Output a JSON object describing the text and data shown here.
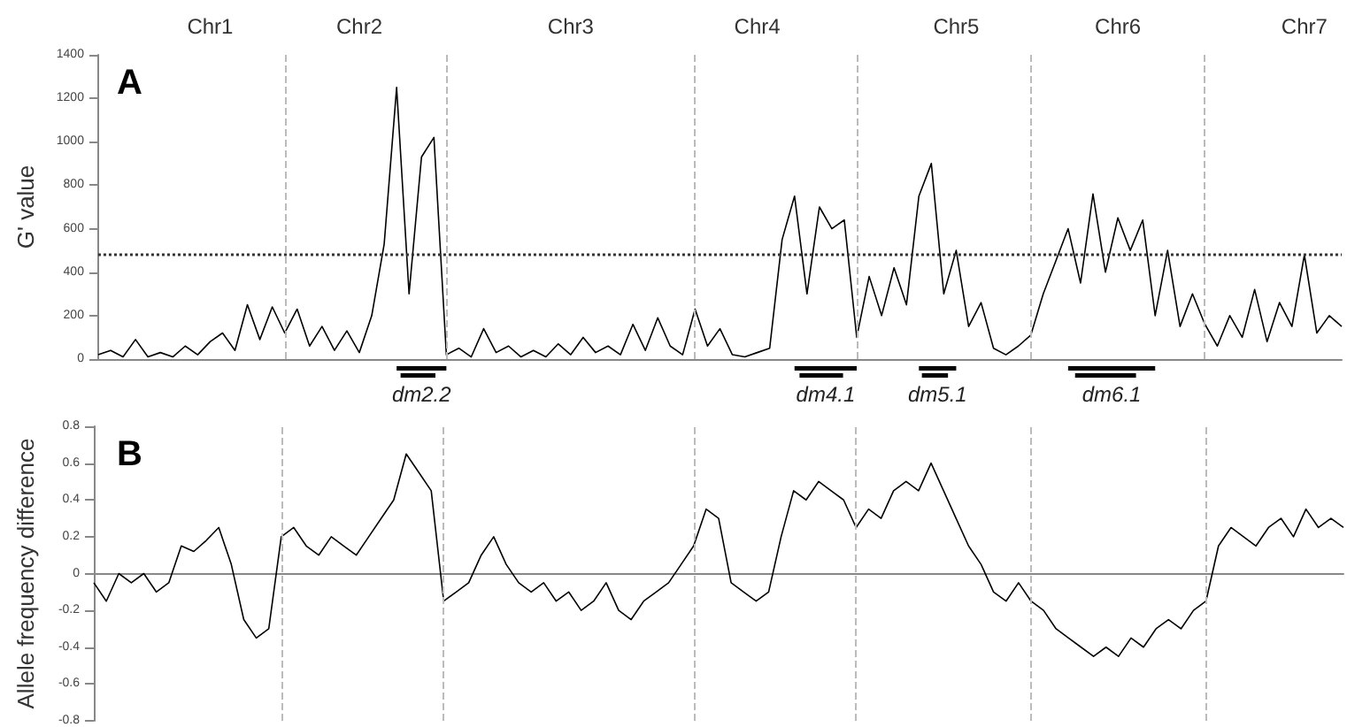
{
  "chart_data": [
    {
      "type": "line",
      "ylabel": "G' value",
      "annotations": [
        "A",
        "dm2.2",
        "dm4.1",
        "dm5.1",
        "dm6.1"
      ],
      "categories": [
        null,
        null,
        null,
        null,
        null,
        null,
        null,
        null,
        null,
        "Chr1",
        null,
        null,
        null,
        null,
        null,
        null,
        null,
        null,
        null,
        null,
        null,
        "Chr2",
        null,
        null,
        null,
        null,
        null,
        null,
        null,
        null,
        null,
        null,
        null,
        null,
        null,
        null,
        null,
        null,
        "Chr3",
        null,
        null,
        null,
        null,
        null,
        null,
        null,
        null,
        null,
        null,
        null,
        null,
        null,
        null,
        "Chr4",
        null,
        null,
        null,
        null,
        null,
        null,
        null,
        null,
        null,
        null,
        null,
        null,
        null,
        null,
        null,
        "Chr5",
        null,
        null,
        null,
        null,
        null,
        null,
        null,
        null,
        null,
        null,
        null,
        null,
        "Chr6",
        null,
        null,
        null,
        null,
        null,
        null,
        null,
        null,
        null,
        null,
        null,
        null,
        null,
        null,
        "Chr7",
        null,
        null,
        null
      ],
      "ylim": [
        0,
        1400
      ],
      "yticks": [
        0,
        200,
        400,
        600,
        800,
        1000,
        1200,
        1400
      ],
      "marker": "none",
      "line_style": "solid",
      "series": [
        {
          "color": "#000000",
          "values": [
            20,
            40,
            10,
            90,
            10,
            30,
            10,
            60,
            20,
            80,
            120,
            40,
            250,
            90,
            240,
            120,
            230,
            60,
            150,
            40,
            130,
            30,
            200,
            530,
            1250,
            300,
            930,
            1020,
            20,
            50,
            10,
            140,
            30,
            60,
            10,
            40,
            10,
            70,
            20,
            100,
            30,
            60,
            20,
            160,
            40,
            190,
            60,
            20,
            230,
            60,
            140,
            20,
            10,
            30,
            50,
            550,
            750,
            300,
            700,
            600,
            640,
            100,
            380,
            200,
            420,
            250,
            750,
            900,
            300,
            500,
            150,
            260,
            50,
            20,
            60,
            110,
            300,
            450,
            600,
            350,
            760,
            400,
            650,
            500,
            640,
            200,
            500,
            150,
            300,
            160,
            60,
            200,
            100,
            320,
            80,
            260,
            150,
            480,
            120,
            200,
            150
          ]
        }
      ],
      "ref_lines": [
        {
          "axis": "y",
          "value": 480,
          "line_style": "dotted",
          "color": "#333333"
        }
      ]
    },
    {
      "type": "line",
      "ylabel": "Allele frequency difference",
      "annotations": [
        "B"
      ],
      "categories": [
        null,
        null,
        null,
        null,
        null,
        null,
        null,
        null,
        null,
        null,
        null,
        null,
        null,
        null,
        null,
        null,
        null,
        null,
        null,
        null,
        null,
        null,
        null,
        null,
        null,
        null,
        null,
        null,
        null,
        null,
        null,
        null,
        null,
        null,
        null,
        null,
        null,
        null,
        null,
        null,
        null,
        null,
        null,
        null,
        null,
        null,
        null,
        null,
        null,
        null,
        null,
        null,
        null,
        null,
        null,
        null,
        null,
        null,
        null,
        null,
        null,
        null,
        null,
        null,
        null,
        null,
        null,
        null,
        null,
        null,
        null,
        null,
        null,
        null,
        null,
        null,
        null,
        null,
        null,
        null,
        null,
        null,
        null,
        null,
        null,
        null,
        null,
        null,
        null,
        null,
        null,
        null,
        null,
        null,
        null,
        null,
        null,
        null,
        null,
        null,
        null
      ],
      "ylim": [
        -0.8,
        0.8
      ],
      "yticks": [
        -0.8,
        -0.6,
        -0.4,
        -0.2,
        0,
        0.2,
        0.4,
        0.6,
        0.8
      ],
      "tick_labels": "y",
      "marker": "none",
      "line_style": "solid",
      "series": [
        {
          "color": "#000000",
          "values": [
            -0.05,
            -0.15,
            0,
            -0.05,
            0,
            -0.1,
            -0.05,
            0.15,
            0.12,
            0.18,
            0.25,
            0.05,
            -0.25,
            -0.35,
            -0.3,
            0.2,
            0.25,
            0.15,
            0.1,
            0.2,
            0.15,
            0.1,
            0.2,
            0.3,
            0.4,
            0.65,
            0.55,
            0.45,
            -0.15,
            -0.1,
            -0.05,
            0.1,
            0.2,
            0.05,
            -0.05,
            -0.1,
            -0.05,
            -0.15,
            -0.1,
            -0.2,
            -0.15,
            -0.05,
            -0.2,
            -0.25,
            -0.15,
            -0.1,
            -0.05,
            0.05,
            0.15,
            0.35,
            0.3,
            -0.05,
            -0.1,
            -0.15,
            -0.1,
            0.2,
            0.45,
            0.4,
            0.5,
            0.45,
            0.4,
            0.25,
            0.35,
            0.3,
            0.45,
            0.5,
            0.45,
            0.6,
            0.45,
            0.3,
            0.15,
            0.05,
            -0.1,
            -0.15,
            -0.05,
            -0.15,
            -0.2,
            -0.3,
            -0.35,
            -0.4,
            -0.45,
            -0.4,
            -0.45,
            -0.35,
            -0.4,
            -0.3,
            -0.25,
            -0.3,
            -0.2,
            -0.15,
            0.15,
            0.25,
            0.2,
            0.15,
            0.25,
            0.3,
            0.2,
            0.35,
            0.25,
            0.3,
            0.25
          ]
        }
      ]
    }
  ]
}
